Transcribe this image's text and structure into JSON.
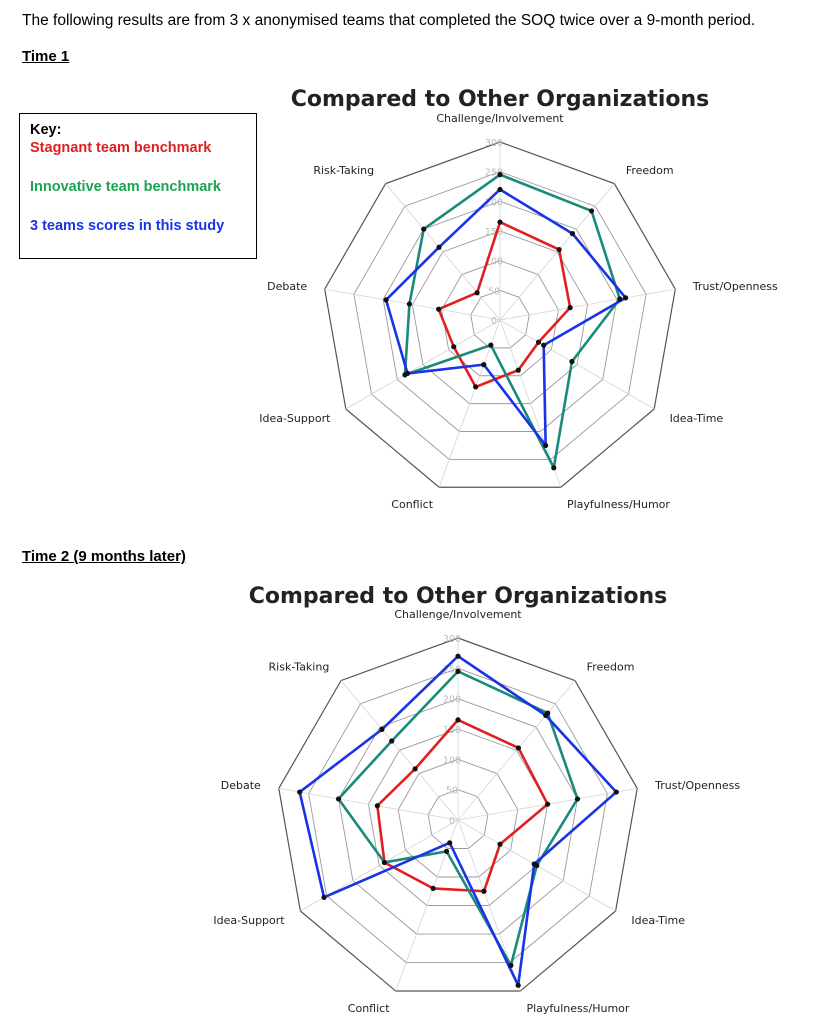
{
  "intro": "The following results are from 3 x anonymised teams that completed the SOQ twice over a 9-month period.",
  "key": {
    "title": "Key:",
    "stagnant": "Stagnant team benchmark",
    "innovative": "Innovative team benchmark",
    "study": "3 teams scores in this study"
  },
  "colors": {
    "stagnant": "#e02020",
    "innovative": "#1a8a7a",
    "study": "#1a33e6",
    "key_innovative_text": "#1aa450"
  },
  "sections": {
    "time1": "Time 1",
    "time2": "Time 2 (9 months later)"
  },
  "chart_data": [
    {
      "type": "radar",
      "title": "Compared to Other Organizations",
      "categories": [
        "Challenge/Involvement",
        "Freedom",
        "Trust/Openness",
        "Idea-Time",
        "Playfulness/Humor",
        "Conflict",
        "Idea-Support",
        "Debate",
        "Risk-Taking"
      ],
      "rlim": [
        0,
        300
      ],
      "ticks": [
        0,
        50,
        100,
        150,
        200,
        250,
        300
      ],
      "series": [
        {
          "name": "Stagnant team benchmark",
          "values": [
            165,
            155,
            120,
            75,
            90,
            120,
            90,
            105,
            60
          ]
        },
        {
          "name": "Innovative team benchmark",
          "values": [
            245,
            240,
            205,
            140,
            265,
            45,
            185,
            155,
            200
          ]
        },
        {
          "name": "3 teams scores in this study",
          "values": [
            220,
            190,
            215,
            85,
            225,
            80,
            180,
            195,
            160
          ]
        }
      ]
    },
    {
      "type": "radar",
      "title": "Compared to Other Organizations",
      "categories": [
        "Challenge/Involvement",
        "Freedom",
        "Trust/Openness",
        "Idea-Time",
        "Playfulness/Humor",
        "Conflict",
        "Idea-Support",
        "Debate",
        "Risk-Taking"
      ],
      "rlim": [
        0,
        300
      ],
      "ticks": [
        0,
        50,
        100,
        150,
        200,
        250,
        300
      ],
      "series": [
        {
          "name": "Stagnant team benchmark",
          "values": [
            165,
            155,
            150,
            80,
            125,
            120,
            140,
            135,
            110
          ]
        },
        {
          "name": "Innovative team benchmark",
          "values": [
            245,
            230,
            200,
            150,
            255,
            55,
            140,
            200,
            170
          ]
        },
        {
          "name": "3 teams scores in this study",
          "values": [
            270,
            225,
            265,
            145,
            290,
            40,
            255,
            265,
            195
          ]
        }
      ]
    }
  ]
}
